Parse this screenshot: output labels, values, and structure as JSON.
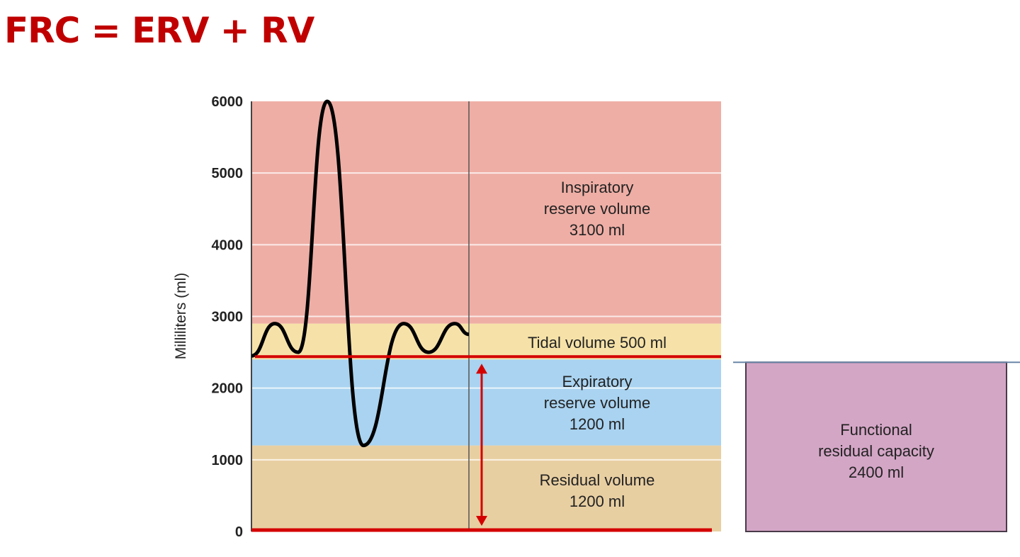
{
  "title": "FRC = ERV + RV",
  "chart_data": {
    "type": "area",
    "ylabel": "Milliliters (ml)",
    "ylim": [
      0,
      6000
    ],
    "yticks": [
      "0",
      "1000",
      "2000",
      "3000",
      "4000",
      "5000",
      "6000"
    ],
    "bands": [
      {
        "name": "Residual volume",
        "value_label": "1200 ml",
        "from": 0,
        "to": 1200,
        "color": "#e8cfa2"
      },
      {
        "name": "Expiratory reserve volume",
        "value_label": "1200 ml",
        "from": 1200,
        "to": 2400,
        "color": "#a9d3f0"
      },
      {
        "name": "Tidal volume 500 ml",
        "value_label": "",
        "from": 2400,
        "to": 2900,
        "color": "#f6e2a8"
      },
      {
        "name": "Inspiratory reserve volume",
        "value_label": "3100 ml",
        "from": 2900,
        "to": 6000,
        "color": "#eeaea5"
      }
    ],
    "spirogram_volumes": [
      2450,
      2900,
      2500,
      6000,
      1200,
      2900,
      2500,
      2900,
      2750
    ],
    "frc": {
      "line1": "Functional",
      "line2": "residual capacity",
      "value_label": "2400 ml",
      "from": 0,
      "to": 2400,
      "color": "#d4a6c6"
    },
    "highlight_color": "#d40000"
  }
}
